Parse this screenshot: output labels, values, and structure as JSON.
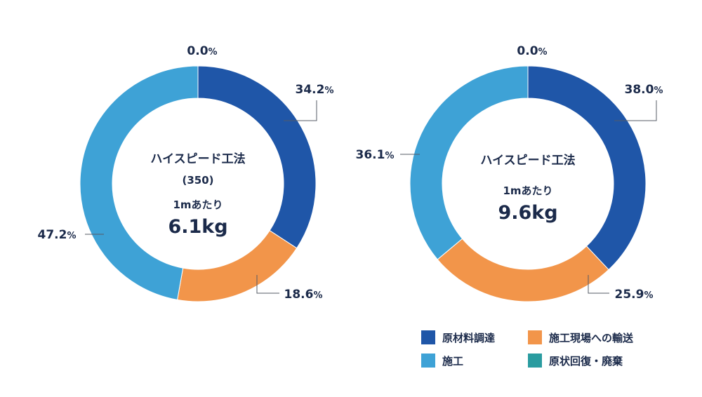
{
  "legend": [
    {
      "label": "原材料調達",
      "color": "#1f56a8"
    },
    {
      "label": "施工現場への輸送",
      "color": "#f2954a"
    },
    {
      "label": "施工",
      "color": "#3ea2d6"
    },
    {
      "label": "原状回復・廃棄",
      "color": "#2a9ca0"
    }
  ],
  "chart_data": [
    {
      "type": "pie",
      "variant": "donut",
      "categories": [
        "原材料調達",
        "施工現場への輸送",
        "施工",
        "原状回復・廃棄"
      ],
      "values": [
        34.2,
        18.6,
        47.2,
        0.0
      ],
      "value_labels": [
        "34.2",
        "18.6",
        "47.2",
        "0.0"
      ],
      "unit": "%",
      "center": {
        "title": "ハイスピード工法",
        "subtitle": "(350)",
        "per": "1mあたり",
        "total": "6.1kg"
      }
    },
    {
      "type": "pie",
      "variant": "donut",
      "categories": [
        "原材料調達",
        "施工現場への輸送",
        "施工",
        "原状回復・廃棄"
      ],
      "values": [
        38.0,
        25.9,
        36.1,
        0.0
      ],
      "value_labels": [
        "38.0",
        "25.9",
        "36.1",
        "0.0"
      ],
      "unit": "%",
      "center": {
        "title": "ハイスピード工法",
        "per": "1mあたり",
        "total": "9.6kg"
      }
    }
  ]
}
